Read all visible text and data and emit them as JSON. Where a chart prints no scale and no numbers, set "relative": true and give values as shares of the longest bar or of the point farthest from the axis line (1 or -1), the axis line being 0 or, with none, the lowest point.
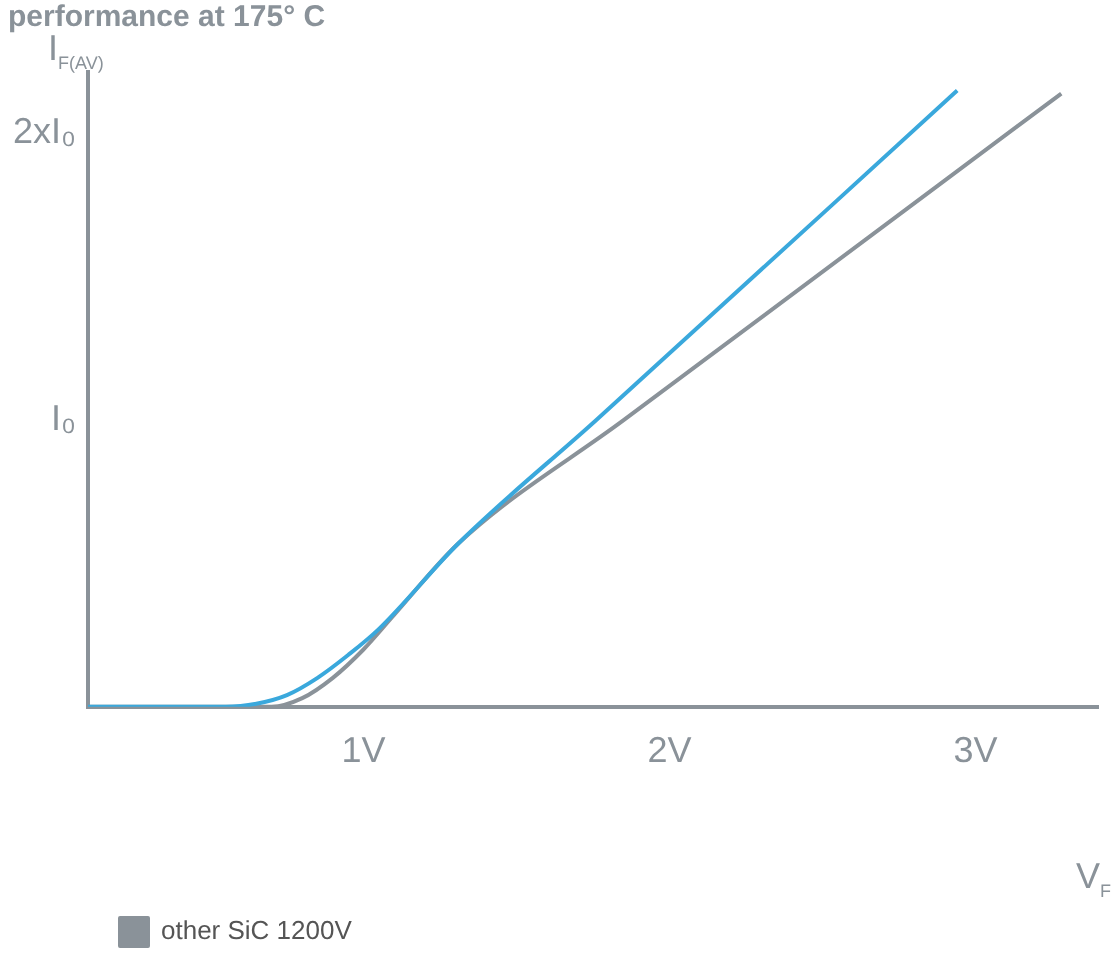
{
  "chart_data": {
    "type": "line",
    "title": "performance at 175° C",
    "xlabel": "V$_{F}$",
    "ylabel": "I$_{F(AV)}$",
    "xlim": [
      0.1,
      3.4
    ],
    "xticks": [
      {
        "value": 1,
        "label": "1V"
      },
      {
        "value": 2,
        "label": "2V"
      },
      {
        "value": 3,
        "label": "3V"
      }
    ],
    "relative": true,
    "annotations": [
      "2xI₀",
      "I₀"
    ],
    "grid": false,
    "legend": "bottom",
    "marker": "none",
    "line_style": "solid",
    "series": [
      {
        "color": "#3aa8dc",
        "x": [
          0.1,
          0.55,
          0.65,
          0.75,
          0.85,
          0.95,
          1.05,
          1.31,
          1.76,
          2.94
        ],
        "values": [
          0,
          0,
          0.005,
          0.019,
          0.047,
          0.084,
          0.126,
          0.265,
          0.465,
          1
        ]
      },
      {
        "name": "other SiC 1200V",
        "color": "#8a9299",
        "x": [
          0.1,
          0.7,
          0.8,
          0.9,
          1.0,
          1.1,
          1.31,
          1.85,
          3.28
        ],
        "values": [
          0,
          0,
          0.014,
          0.047,
          0.093,
          0.149,
          0.265,
          0.465,
          0.995
        ]
      }
    ]
  }
}
